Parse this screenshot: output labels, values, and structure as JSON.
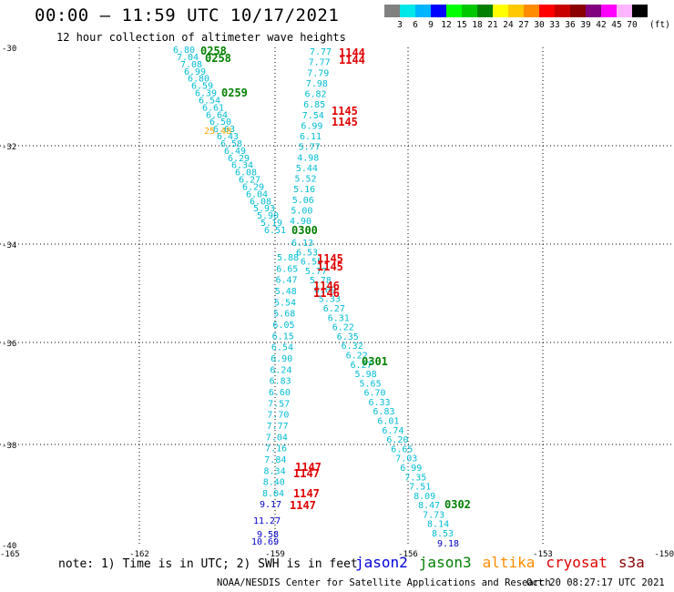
{
  "header": {
    "title": "00:00 – 11:59 UTC 10/17/2021",
    "subtitle": "12 hour collection of altimeter wave heights"
  },
  "legend": {
    "colors": [
      "#808080",
      "#00e8e8",
      "#00b4ff",
      "#0000ff",
      "#00ff00",
      "#00c800",
      "#008000",
      "#ffff00",
      "#ffc800",
      "#ff8c00",
      "#ff0000",
      "#c80000",
      "#8b0000",
      "#800080",
      "#ff00ff",
      "#ffb4ff",
      "#000000"
    ],
    "labels": [
      "3",
      "6",
      "9",
      "12",
      "15",
      "18",
      "21",
      "24",
      "27",
      "30",
      "33",
      "36",
      "39",
      "42",
      "45",
      "70"
    ],
    "unit": "(ft)"
  },
  "map": {
    "lon_ticks": [
      "-165",
      "-162",
      "-159",
      "-156",
      "-153",
      "-150"
    ],
    "lat_ticks": [
      "-30",
      "-32",
      "-34",
      "-36",
      "-38",
      "-40"
    ],
    "track_a": {
      "color": "#00bcd4",
      "labels": [
        "6.80",
        "7.04",
        "7.08",
        "6.99",
        "6.80",
        "6.59",
        "6.39",
        "6.54",
        "6.61",
        "6.64",
        "6.50",
        "6.63",
        "6.43",
        "6.58",
        "6.49",
        "6.29",
        "6.34",
        "6.08",
        "6.27",
        "6.29",
        "6.04",
        "6.08",
        "5.93",
        "5.90",
        "5.19",
        "6.51"
      ]
    },
    "track_b": {
      "color": "#00bcd4",
      "labels": [
        "7.77",
        "7.77",
        "7.79",
        "7.98",
        "6.82",
        "6.85",
        "7.54",
        "6.99",
        "6.11",
        "5.77",
        "4.98",
        "5.44",
        "5.52",
        "5.16",
        "5.06",
        "5.00",
        "4.90"
      ]
    },
    "track_c": {
      "color": "#00bcd4",
      "labels": [
        "6.13",
        "6.53",
        "6.55",
        "5.77",
        "5.78",
        "6.09",
        "5.33",
        "6.27",
        "6.31",
        "6.22",
        "6.35",
        "6.32",
        "6.22",
        "6.27",
        "5.98",
        "5.65",
        "6.70",
        "6.33",
        "6.83",
        "6.01",
        "6.74",
        "6.20",
        "6.65",
        "7.03",
        "6.99",
        "7.35",
        "7.51",
        "8.09",
        "8.47",
        "7.73",
        "8.14",
        "8.53"
      ]
    },
    "track_d": {
      "color": "#00bcd4",
      "labels": [
        "5.88",
        "6.65",
        "6.47",
        "5.48",
        "5.54",
        "5.68",
        "6.05",
        "6.15",
        "6.54",
        "6.90",
        "6.24",
        "6.83",
        "6.60",
        "7.57",
        "7.70",
        "7.77",
        "7.04",
        "7.16",
        "7.84",
        "8.34",
        "8.40",
        "8.04"
      ]
    },
    "blue_values": [
      "9.17",
      "11.27",
      "9.58",
      "10.69",
      "9.18"
    ],
    "orange_value": "25.48",
    "time_marks": [
      {
        "text": "0258",
        "color": "#008000"
      },
      {
        "text": "0258",
        "color": "#008000"
      },
      {
        "text": "0259",
        "color": "#008000"
      },
      {
        "text": "0300",
        "color": "#008000"
      },
      {
        "text": "0301",
        "color": "#008000"
      },
      {
        "text": "0302",
        "color": "#008000"
      },
      {
        "text": "1144",
        "color": "#e00000"
      },
      {
        "text": "1144",
        "color": "#e00000"
      },
      {
        "text": "1145",
        "color": "#e00000"
      },
      {
        "text": "1145",
        "color": "#e00000"
      },
      {
        "text": "1145",
        "color": "#e00000"
      },
      {
        "text": "1145",
        "color": "#e00000"
      },
      {
        "text": "1146",
        "color": "#e00000"
      },
      {
        "text": "1146",
        "color": "#e00000"
      },
      {
        "text": "1147",
        "color": "#e00000"
      },
      {
        "text": "1147",
        "color": "#e00000"
      },
      {
        "text": "1147",
        "color": "#e00000"
      },
      {
        "text": "1147",
        "color": "#e00000"
      }
    ]
  },
  "notes": {
    "text": "note: 1) Time is in UTC; 2) SWH is in feet",
    "satellites": [
      {
        "name": "jason2",
        "color": "#0000dd"
      },
      {
        "name": "jason3",
        "color": "#008000"
      },
      {
        "name": "altika",
        "color": "#ff8c00"
      },
      {
        "name": "cryosat",
        "color": "#e00000"
      },
      {
        "name": "s3a",
        "color": "#8b0000"
      }
    ]
  },
  "footer": {
    "credit": "NOAA/NESDIS Center for Satellite Applications and Research",
    "stamp": "Oct 20 08:27:17 UTC 2021"
  }
}
